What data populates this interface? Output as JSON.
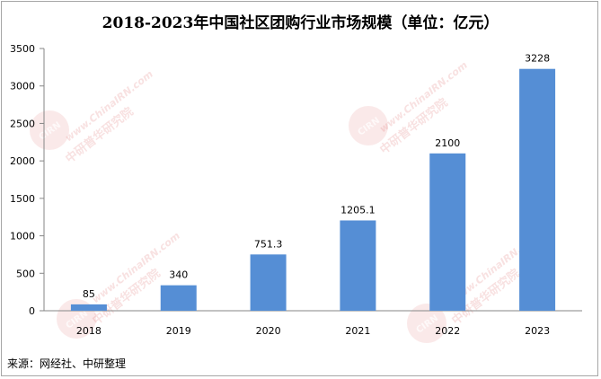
{
  "chart_data": {
    "type": "bar",
    "title": "2018-2023年中国社区团购行业市场规模（单位：亿元）",
    "categories": [
      "2018",
      "2019",
      "2020",
      "2021",
      "2022",
      "2023"
    ],
    "values": [
      85,
      340,
      751.3,
      1205.1,
      2100,
      3228
    ],
    "data_labels": [
      "85",
      "340",
      "751.3",
      "1205.1",
      "2100",
      "3228"
    ],
    "xlabel": "",
    "ylabel": "",
    "ylim": [
      0,
      3500
    ],
    "yticks": [
      "0",
      "500",
      "1000",
      "1500",
      "2000",
      "2500",
      "3000",
      "3500"
    ],
    "grid": false,
    "legend": "none",
    "bar_color": "#558ED5"
  },
  "source": "来源：网经社、中研整理",
  "watermark": {
    "url": "www.ChinaIRN.com",
    "logo_text": "中研普华研究院",
    "badge": "CIRN"
  }
}
